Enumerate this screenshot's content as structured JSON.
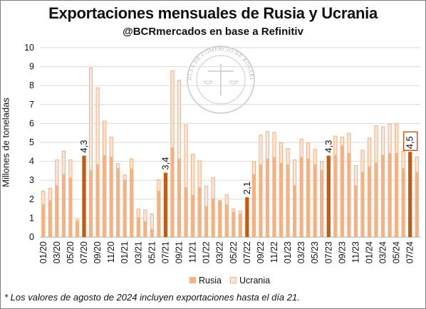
{
  "title": "Exportaciones mensuales de Rusia y Ucrania",
  "subtitle": "@BCRmercados en base a Refinitiv",
  "footnote": "* Los valores de agosto de 2024 incluyen exportaciones hasta el día 21.",
  "watermark_text": "BOLSA DE COMERCIO DE ROSARIO",
  "colors": {
    "rusia": "#f4b183",
    "rusia_highlight": "#c55a11",
    "ucrania": "#fbe5d6",
    "ucrania_border": "#f4b183",
    "grid": "#d9d9d9",
    "label_box": "#c55a11"
  },
  "chart_data": {
    "type": "bar",
    "stacked": true,
    "ylabel": "Millones de toneladas",
    "xlabel": "",
    "ylim": [
      0,
      10
    ],
    "yticks": [
      0,
      1,
      2,
      3,
      4,
      5,
      6,
      7,
      8,
      9,
      10
    ],
    "grid": "horizontal",
    "legend_position": "bottom",
    "categories": [
      "01/20",
      "02/20",
      "03/20",
      "04/20",
      "05/20",
      "06/20",
      "07/20",
      "08/20",
      "09/20",
      "10/20",
      "11/20",
      "12/20",
      "01/21",
      "02/21",
      "03/21",
      "04/21",
      "05/21",
      "06/21",
      "07/21",
      "08/21",
      "09/21",
      "10/21",
      "11/21",
      "12/21",
      "01/22",
      "02/22",
      "03/22",
      "04/22",
      "05/22",
      "06/22",
      "07/22",
      "08/22",
      "09/22",
      "10/22",
      "11/22",
      "12/22",
      "01/23",
      "02/23",
      "03/23",
      "04/23",
      "05/23",
      "06/23",
      "07/23",
      "08/23",
      "09/23",
      "10/23",
      "11/23",
      "12/23",
      "01/24",
      "02/24",
      "03/24",
      "04/24",
      "05/24",
      "06/24",
      "07/24",
      "08/24"
    ],
    "tick_labels": [
      "01/20",
      "",
      "03/20",
      "",
      "05/20",
      "",
      "07/20",
      "",
      "09/20",
      "",
      "11/20",
      "",
      "01/21",
      "",
      "03/21",
      "",
      "05/21",
      "",
      "07/21",
      "",
      "09/21",
      "",
      "11/21",
      "",
      "01/22",
      "",
      "03/22",
      "",
      "05/22",
      "",
      "07/22",
      "",
      "09/22",
      "",
      "11/22",
      "",
      "01/23",
      "",
      "03/23",
      "",
      "05/23",
      "",
      "07/23",
      "",
      "09/23",
      "",
      "11/23",
      "",
      "01/24",
      "",
      "03/24",
      "",
      "05/24",
      "",
      "07/24",
      ""
    ],
    "series": [
      {
        "name": "Rusia",
        "values": [
          1.7,
          1.9,
          2.7,
          3.3,
          3.1,
          0.8,
          4.3,
          3.5,
          3.8,
          4.3,
          4.2,
          3.6,
          3.0,
          3.6,
          1.0,
          0.8,
          0.4,
          2.4,
          3.4,
          4.7,
          4.1,
          2.6,
          2.2,
          2.6,
          1.6,
          2.0,
          1.9,
          1.7,
          1.3,
          1.2,
          2.1,
          3.3,
          3.8,
          4.1,
          4.2,
          3.9,
          3.8,
          2.7,
          4.2,
          4.1,
          3.8,
          3.5,
          4.3,
          4.3,
          4.8,
          4.4,
          2.7,
          3.4,
          3.7,
          3.9,
          4.3,
          4.4,
          4.4,
          3.6,
          4.5,
          3.4
        ]
      },
      {
        "name": "Ucrania",
        "values": [
          0.75,
          0.7,
          1.4,
          1.25,
          1.0,
          0.15,
          0.0,
          5.45,
          4.1,
          1.85,
          1.1,
          0.3,
          0.3,
          0.55,
          0.5,
          0.65,
          0.85,
          0.65,
          0.0,
          4.1,
          4.2,
          3.35,
          2.2,
          1.45,
          1.1,
          1.15,
          0.05,
          0.55,
          0.2,
          0.2,
          0.0,
          0.7,
          1.6,
          1.5,
          1.35,
          1.1,
          0.9,
          1.4,
          1.0,
          0.9,
          0.85,
          0.5,
          0.0,
          1.05,
          0.5,
          1.1,
          1.1,
          1.2,
          1.55,
          2.0,
          1.55,
          1.6,
          1.6,
          0.95,
          0.0,
          0.85
        ]
      }
    ],
    "highlighted_categories": [
      "07/20",
      "07/21",
      "07/22",
      "07/23",
      "07/24"
    ],
    "data_labels": [
      {
        "category": "07/20",
        "text": "4,3",
        "boxed": false
      },
      {
        "category": "07/21",
        "text": "3,4",
        "boxed": false
      },
      {
        "category": "07/22",
        "text": "2,1",
        "boxed": false
      },
      {
        "category": "07/23",
        "text": "4,3",
        "boxed": false
      },
      {
        "category": "07/24",
        "text": "4,5",
        "boxed": true
      }
    ]
  }
}
